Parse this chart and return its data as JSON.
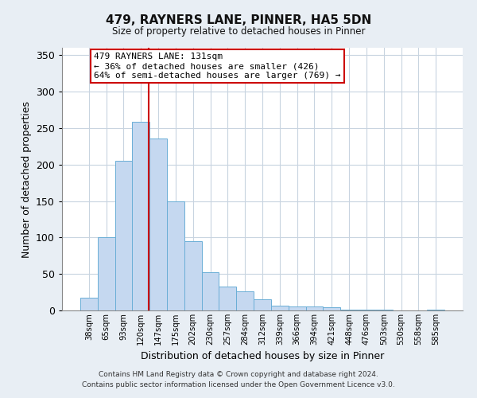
{
  "title": "479, RAYNERS LANE, PINNER, HA5 5DN",
  "subtitle": "Size of property relative to detached houses in Pinner",
  "xlabel": "Distribution of detached houses by size in Pinner",
  "ylabel": "Number of detached properties",
  "bar_labels": [
    "38sqm",
    "65sqm",
    "93sqm",
    "120sqm",
    "147sqm",
    "175sqm",
    "202sqm",
    "230sqm",
    "257sqm",
    "284sqm",
    "312sqm",
    "339sqm",
    "366sqm",
    "394sqm",
    "421sqm",
    "448sqm",
    "476sqm",
    "503sqm",
    "530sqm",
    "558sqm",
    "585sqm"
  ],
  "bar_values": [
    18,
    100,
    205,
    258,
    236,
    150,
    95,
    52,
    33,
    26,
    15,
    7,
    5,
    5,
    4,
    1,
    1,
    1,
    0,
    0,
    1
  ],
  "bar_color": "#c5d8f0",
  "bar_edge_color": "#6aaed6",
  "vline_color": "#cc0000",
  "vline_x": 3.45,
  "annotation_text": "479 RAYNERS LANE: 131sqm\n← 36% of detached houses are smaller (426)\n64% of semi-detached houses are larger (769) →",
  "annotation_box_color": "#ffffff",
  "annotation_box_edge": "#cc0000",
  "ylim": [
    0,
    360
  ],
  "yticks": [
    0,
    50,
    100,
    150,
    200,
    250,
    300,
    350
  ],
  "footer": "Contains HM Land Registry data © Crown copyright and database right 2024.\nContains public sector information licensed under the Open Government Licence v3.0.",
  "bg_color": "#e8eef4",
  "plot_bg_color": "#ffffff",
  "grid_color": "#c8d4e0"
}
